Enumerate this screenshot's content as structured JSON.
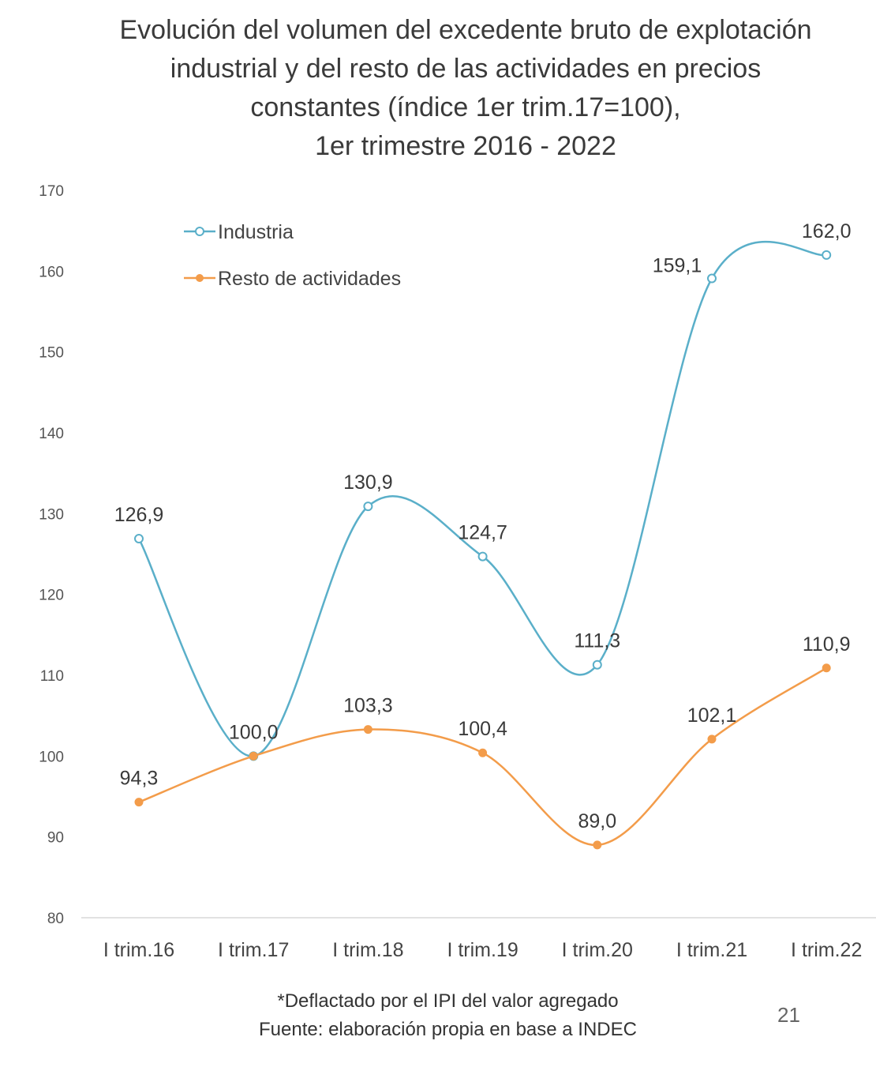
{
  "chart_data": {
    "type": "line",
    "title_lines": [
      "Evolución del volumen del excedente bruto de explotación",
      "industrial y del resto de las actividades en precios",
      "constantes (índice 1er trim.17=100),",
      "1er trimestre 2016 - 2022"
    ],
    "categories": [
      "I trim.16",
      "I trim.17",
      "I trim.18",
      "I trim.19",
      "I trim.20",
      "I trim.21",
      "I trim.22"
    ],
    "series": [
      {
        "name": "Industria",
        "values": [
          126.9,
          100.0,
          130.9,
          124.7,
          111.3,
          159.1,
          162.0
        ],
        "labels": [
          "126,9",
          "100,0",
          "130,9",
          "124,7",
          "111,3",
          "159,1",
          "162,0"
        ],
        "color": "#5aafc9",
        "marker": "open-circle"
      },
      {
        "name": "Resto de actividades",
        "values": [
          94.3,
          100.0,
          103.3,
          100.4,
          89.0,
          102.1,
          110.9
        ],
        "labels": [
          "94,3",
          "",
          "103,3",
          "100,4",
          "89,0",
          "102,1",
          "110,9"
        ],
        "color": "#f39c4a",
        "marker": "filled-circle"
      }
    ],
    "ylim": [
      80,
      170
    ],
    "yticks": [
      80,
      90,
      100,
      110,
      120,
      130,
      140,
      150,
      160,
      170
    ],
    "xlabel": "",
    "ylabel": "",
    "legend_position": "top-left",
    "grid": false
  },
  "footer": {
    "note": "*Deflactado por el IPI del valor agregado",
    "source": "Fuente: elaboración propia en base a INDEC"
  },
  "page_number": "21"
}
